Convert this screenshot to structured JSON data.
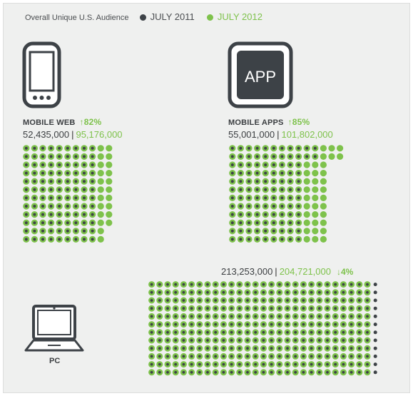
{
  "colors": {
    "dark": "#3d4247",
    "green": "#7ec24b",
    "text": "#3b3e41"
  },
  "legend": {
    "title": "Overall Unique U.S. Audience",
    "items": [
      {
        "label": "JULY 2011",
        "color": "#3d4247"
      },
      {
        "label": "JULY 2012",
        "color": "#7ec24b"
      }
    ]
  },
  "icons": {
    "mobile_web": "smartphone-icon",
    "mobile_apps": "app-icon",
    "pc": "laptop-icon"
  },
  "app_icon_text": "APP",
  "chart_data": [
    {
      "type": "dot-grid",
      "label": "MOBILE WEB",
      "change_arrow": "↑",
      "change_label": "82%",
      "change_direction": "up",
      "series": [
        {
          "name": "JULY 2011",
          "value": 52435000,
          "value_label": "52,435,000"
        },
        {
          "name": "JULY 2012",
          "value": 95176000,
          "value_label": "95,176,000"
        }
      ],
      "dots": {
        "rows": 12,
        "green_rows": [
          11,
          11,
          11,
          11,
          11,
          11,
          11,
          11,
          11,
          11,
          10,
          10
        ],
        "dark_rows": [
          9,
          9,
          9,
          9,
          9,
          9,
          9,
          9,
          9,
          9,
          9,
          9
        ]
      }
    },
    {
      "type": "dot-grid",
      "label": "MOBILE APPS",
      "change_arrow": "↑",
      "change_label": "85%",
      "change_direction": "up",
      "series": [
        {
          "name": "JULY 2011",
          "value": 55001000,
          "value_label": "55,001,000"
        },
        {
          "name": "JULY 2012",
          "value": 101802000,
          "value_label": "101,802,000"
        }
      ],
      "dots": {
        "rows": 12,
        "green_rows": [
          14,
          14,
          12,
          12,
          12,
          12,
          12,
          12,
          12,
          12,
          12,
          12
        ],
        "dark_rows": [
          11,
          11,
          9,
          9,
          9,
          9,
          9,
          9,
          9,
          9,
          9,
          9
        ]
      }
    },
    {
      "type": "dot-grid",
      "label": "PC",
      "change_arrow": "↓",
      "change_label": "4%",
      "change_direction": "down",
      "series": [
        {
          "name": "JULY 2011",
          "value": 213253000,
          "value_label": "213,253,000"
        },
        {
          "name": "JULY 2012",
          "value": 204721000,
          "value_label": "204,721,000"
        }
      ],
      "dots": {
        "rows": 12,
        "green_rows": [
          28,
          28,
          28,
          28,
          28,
          28,
          28,
          28,
          28,
          28,
          28,
          28
        ],
        "dark_rows": [
          29,
          29,
          29,
          29,
          29,
          29,
          29,
          29,
          29,
          29,
          29,
          29
        ]
      }
    }
  ]
}
